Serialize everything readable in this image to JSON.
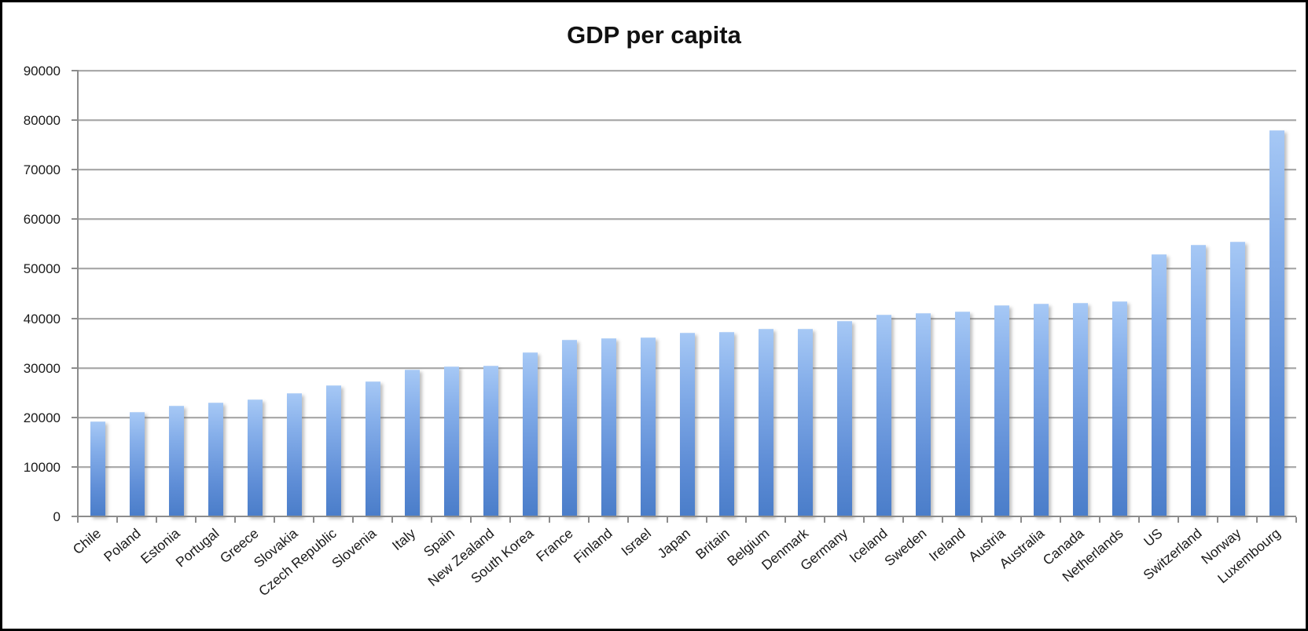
{
  "chart_data": {
    "type": "bar",
    "title": "GDP per capita",
    "xlabel": "",
    "ylabel": "",
    "ylim": [
      0,
      90000
    ],
    "ytick_interval": 10000,
    "yticks": [
      0,
      10000,
      20000,
      30000,
      40000,
      50000,
      60000,
      70000,
      80000,
      90000
    ],
    "grid": "horizontal-gridlines-on",
    "legend": "none",
    "categories": [
      "Chile",
      "Poland",
      "Estonia",
      "Portugal",
      "Greece",
      "Slovakia",
      "Czech Republic",
      "Slovenia",
      "Italy",
      "Spain",
      "New Zealand",
      "South Korea",
      "France",
      "Finland",
      "Israel",
      "Japan",
      "Britain",
      "Belgium",
      "Denmark",
      "Germany",
      "Iceland",
      "Sweden",
      "Ireland",
      "Austria",
      "Australia",
      "Canada",
      "Netherlands",
      "US",
      "Switzerland",
      "Norway",
      "Luxembourg"
    ],
    "values": [
      19200,
      21100,
      22400,
      23000,
      23600,
      24800,
      26400,
      27300,
      29600,
      30200,
      30500,
      33100,
      35600,
      35900,
      36200,
      37000,
      37300,
      37800,
      37800,
      39500,
      40700,
      41000,
      41300,
      42600,
      43000,
      43100,
      43400,
      52900,
      54800,
      55500,
      78000
    ],
    "colors": {
      "bar_gradient_top": "#a6c8f5",
      "bar_gradient_bottom": "#4a7dc9",
      "gridline": "#ababab",
      "axis": "#8c8c8c",
      "title_text": "#111111",
      "label_text": "#1a1a1a",
      "background": "#ffffff",
      "border": "#000000"
    }
  }
}
